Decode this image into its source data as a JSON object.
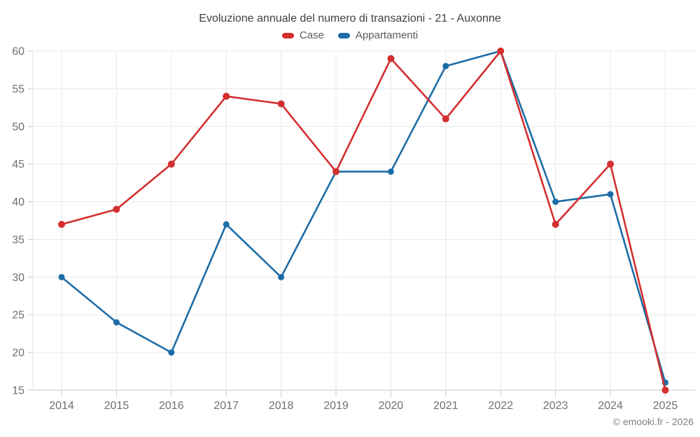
{
  "chart_data": {
    "type": "line",
    "title": "Evoluzione annuale del numero di transazioni - 21 - Auxonne",
    "categories": [
      "2014",
      "2015",
      "2016",
      "2017",
      "2018",
      "2019",
      "2020",
      "2021",
      "2022",
      "2023",
      "2024",
      "2025"
    ],
    "series": [
      {
        "name": "Case",
        "color": "#d32f2f",
        "values": [
          37,
          39,
          45,
          54,
          53,
          44,
          59,
          51,
          60,
          37,
          45,
          15
        ]
      },
      {
        "name": "Appartamenti",
        "color": "#1c6da6",
        "values": [
          30,
          24,
          20,
          37,
          30,
          44,
          44,
          58,
          60,
          40,
          41,
          16
        ]
      }
    ],
    "xlabel": "",
    "ylabel": "",
    "ylim": [
      15,
      60
    ],
    "ytick_step": 5,
    "grid": true,
    "legend_position": "top"
  },
  "colors": {
    "background": "#ffffff",
    "gridline": "#e8e8e8",
    "axis_line": "#c8c8c8",
    "left_axis_line": "#e0e0e0",
    "tick": "#c8c8c8",
    "axis_label": "#707070",
    "title": "#3f3f3f",
    "legend_label": "#5a5a5a",
    "attribution": "#808080"
  },
  "attribution": "© emooki.fr - 2026"
}
